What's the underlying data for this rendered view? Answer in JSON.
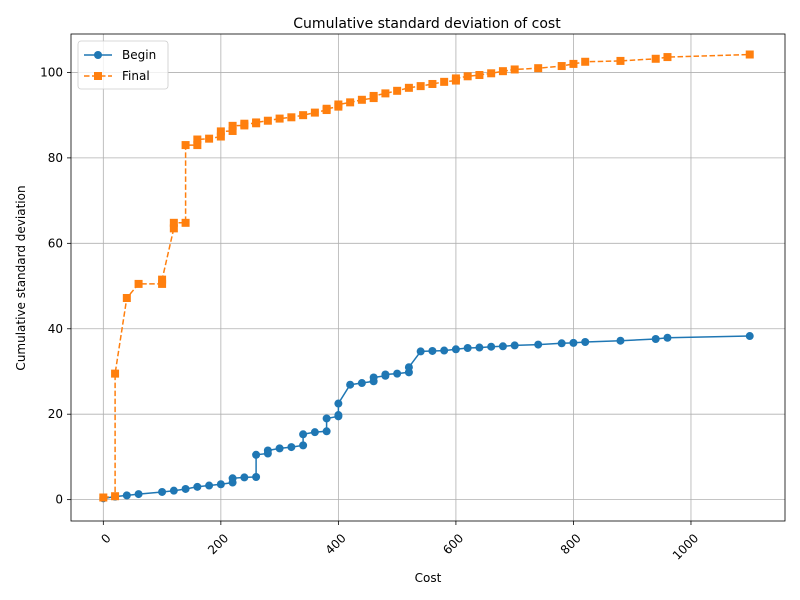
{
  "chart_data": {
    "type": "line",
    "title": "Cumulative standard deviation of cost",
    "xlabel": "Cost",
    "ylabel": "Cumulative standard deviation",
    "xlim": [
      -55,
      1160
    ],
    "ylim": [
      -5,
      109
    ],
    "xticks": [
      0,
      200,
      400,
      600,
      800,
      1000
    ],
    "yticks": [
      0,
      20,
      40,
      60,
      80,
      100
    ],
    "xtick_rotation": 45,
    "grid": true,
    "legend_position": "top-left",
    "series": [
      {
        "name": "Begin",
        "color": "#1f77b4",
        "linestyle": "solid",
        "marker": "circle",
        "x": [
          0,
          20,
          40,
          60,
          100,
          120,
          140,
          160,
          180,
          200,
          220,
          220,
          240,
          260,
          260,
          280,
          280,
          300,
          320,
          340,
          340,
          360,
          380,
          380,
          400,
          400,
          400,
          420,
          440,
          460,
          460,
          480,
          480,
          500,
          520,
          520,
          540,
          560,
          580,
          600,
          620,
          640,
          660,
          680,
          700,
          740,
          780,
          800,
          820,
          880,
          940,
          960,
          1100
        ],
        "y": [
          0.3,
          0.7,
          1.0,
          1.3,
          1.8,
          2.1,
          2.5,
          3.0,
          3.3,
          3.6,
          4.0,
          5.0,
          5.2,
          5.3,
          10.5,
          10.8,
          11.5,
          12.0,
          12.3,
          12.7,
          15.3,
          15.8,
          16.0,
          19.0,
          19.5,
          19.8,
          22.5,
          26.9,
          27.3,
          27.7,
          28.6,
          29.0,
          29.3,
          29.5,
          29.8,
          31.0,
          34.7,
          34.8,
          34.9,
          35.2,
          35.5,
          35.6,
          35.8,
          35.9,
          36.1,
          36.3,
          36.6,
          36.7,
          36.9,
          37.2,
          37.6,
          37.9,
          38.3
        ]
      },
      {
        "name": "Final",
        "color": "#ff7f0e",
        "linestyle": "dashed",
        "marker": "square",
        "x": [
          0,
          20,
          20,
          40,
          60,
          100,
          100,
          120,
          120,
          140,
          140,
          160,
          160,
          180,
          200,
          200,
          220,
          220,
          240,
          240,
          260,
          260,
          280,
          300,
          320,
          340,
          360,
          380,
          380,
          400,
          400,
          420,
          440,
          460,
          460,
          480,
          500,
          520,
          540,
          560,
          580,
          600,
          600,
          620,
          640,
          660,
          680,
          700,
          740,
          780,
          800,
          820,
          880,
          940,
          960,
          1100
        ],
        "y": [
          0.5,
          0.8,
          29.5,
          47.2,
          50.5,
          50.5,
          51.5,
          63.5,
          64.8,
          64.8,
          83.0,
          83.0,
          84.3,
          84.5,
          85.0,
          86.2,
          86.3,
          87.5,
          87.6,
          88.0,
          88.1,
          88.3,
          88.7,
          89.2,
          89.5,
          90.0,
          90.6,
          91.2,
          91.5,
          92.0,
          92.5,
          93.0,
          93.6,
          94.0,
          94.5,
          95.1,
          95.7,
          96.4,
          96.8,
          97.3,
          97.8,
          98.1,
          98.6,
          99.1,
          99.4,
          99.8,
          100.3,
          100.7,
          101.0,
          101.5,
          102.0,
          102.5,
          102.7,
          103.2,
          103.6,
          104.2
        ]
      }
    ]
  }
}
